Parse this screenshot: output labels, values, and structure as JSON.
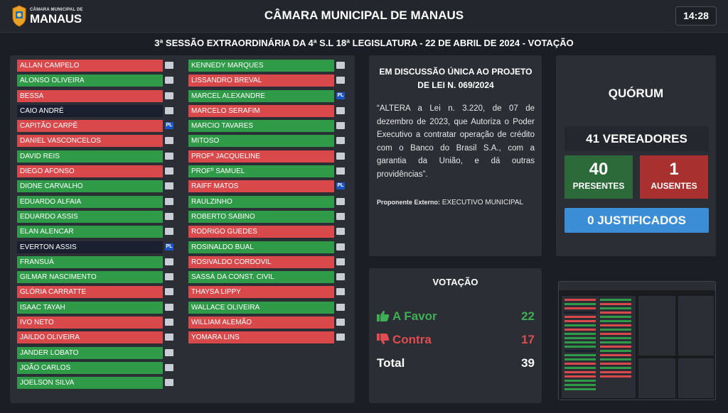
{
  "header": {
    "logo_small": "CÂMARA MUNICIPAL DE",
    "logo_big": "MANAUS",
    "title": "CÂMARA MUNICIPAL DE MANAUS",
    "time": "14:28"
  },
  "session_title": "3ª SESSÃO EXTRAORDINÁRIA DA 4ª S.L 18ª LEGISLATURA - 22 DE ABRIL DE 2024 - VOTAÇÃO",
  "members_left": [
    {
      "name": "ALLAN CAMPELO",
      "vote": "contra",
      "party": ""
    },
    {
      "name": "ALONSO OLIVEIRA",
      "vote": "favor",
      "party": ""
    },
    {
      "name": "BESSA",
      "vote": "contra",
      "party": ""
    },
    {
      "name": "CAIO ANDRÉ",
      "vote": "none",
      "party": ""
    },
    {
      "name": "CAPITÃO CARPÊ",
      "vote": "contra",
      "party": "PL"
    },
    {
      "name": "DANIEL VASCONCELOS",
      "vote": "contra",
      "party": ""
    },
    {
      "name": "DAVID REIS",
      "vote": "favor",
      "party": ""
    },
    {
      "name": "DIEGO AFONSO",
      "vote": "contra",
      "party": ""
    },
    {
      "name": "DIONE CARVALHO",
      "vote": "favor",
      "party": ""
    },
    {
      "name": "EDUARDO ALFAIA",
      "vote": "favor",
      "party": ""
    },
    {
      "name": "EDUARDO ASSIS",
      "vote": "favor",
      "party": ""
    },
    {
      "name": "ELAN ALENCAR",
      "vote": "favor",
      "party": ""
    },
    {
      "name": "EVERTON ASSIS",
      "vote": "none",
      "party": "PL"
    },
    {
      "name": "FRANSUÁ",
      "vote": "favor",
      "party": ""
    },
    {
      "name": "GILMAR NASCIMENTO",
      "vote": "favor",
      "party": ""
    },
    {
      "name": "GLÓRIA CARRATTE",
      "vote": "contra",
      "party": ""
    },
    {
      "name": "ISAAC TAYAH",
      "vote": "favor",
      "party": ""
    },
    {
      "name": "IVO NETO",
      "vote": "contra",
      "party": ""
    },
    {
      "name": "JAILDO OLIVEIRA",
      "vote": "contra",
      "party": ""
    },
    {
      "name": "JANDER LOBATO",
      "vote": "favor",
      "party": ""
    },
    {
      "name": "JOÃO CARLOS",
      "vote": "favor",
      "party": ""
    },
    {
      "name": "JOELSON SILVA",
      "vote": "favor",
      "party": ""
    }
  ],
  "members_right": [
    {
      "name": "KENNEDY MARQUES",
      "vote": "favor",
      "party": ""
    },
    {
      "name": "LISSANDRO BREVAL",
      "vote": "contra",
      "party": ""
    },
    {
      "name": "MARCEL ALEXANDRE",
      "vote": "favor",
      "party": "PL"
    },
    {
      "name": "MARCELO SERAFIM",
      "vote": "contra",
      "party": ""
    },
    {
      "name": "MARCIO TAVARES",
      "vote": "favor",
      "party": ""
    },
    {
      "name": "MITOSO",
      "vote": "favor",
      "party": ""
    },
    {
      "name": "PROFª JACQUELINE",
      "vote": "contra",
      "party": ""
    },
    {
      "name": "PROFº SAMUEL",
      "vote": "favor",
      "party": ""
    },
    {
      "name": "RAIFF MATOS",
      "vote": "contra",
      "party": "PL"
    },
    {
      "name": "RAULZINHO",
      "vote": "favor",
      "party": ""
    },
    {
      "name": "ROBERTO SABINO",
      "vote": "favor",
      "party": ""
    },
    {
      "name": "RODRIGO GUEDES",
      "vote": "contra",
      "party": ""
    },
    {
      "name": "ROSINALDO BUAL",
      "vote": "favor",
      "party": ""
    },
    {
      "name": "ROSIVALDO CORDOVIL",
      "vote": "contra",
      "party": ""
    },
    {
      "name": "SASSÁ DA CONST. CIVIL",
      "vote": "favor",
      "party": ""
    },
    {
      "name": "THAYSA LIPPY",
      "vote": "contra",
      "party": ""
    },
    {
      "name": "WALLACE OLIVEIRA",
      "vote": "favor",
      "party": ""
    },
    {
      "name": "WILLIAM ALEMÃO",
      "vote": "contra",
      "party": ""
    },
    {
      "name": "YOMARA LINS",
      "vote": "contra",
      "party": ""
    }
  ],
  "bill": {
    "title": "EM DISCUSSÃO ÚNICA AO PROJETO DE LEI N. 069/2024",
    "text": "“ALTERA a Lei n. 3.220, de 07 de dezembro de 2023, que Autoriza o Poder Executivo a contratar operação de crédito com o Banco do Brasil S.A., com a garantia da União, e dá outras providências”.",
    "proponent_label": "Proponente Externo:",
    "proponent_value": "EXECUTIVO MUNICIPAL"
  },
  "vote": {
    "title": "VOTAÇÃO",
    "favor_label": "A Favor",
    "favor_count": "22",
    "contra_label": "Contra",
    "contra_count": "17",
    "total_label": "Total",
    "total_count": "39"
  },
  "quorum": {
    "title": "QUÓRUM",
    "members": "41 VEREADORES",
    "present_count": "40",
    "present_label": "PRESENTES",
    "absent_count": "1",
    "absent_label": "AUSENTES",
    "justified": "0 JUSTIFICADOS"
  },
  "colors": {
    "favor": "#2f9a48",
    "contra": "#d9484b",
    "none": "#1a2030",
    "party_pl": "#1a56c8",
    "justified": "#3b8ed6"
  },
  "icons": {
    "favor": "thumbs-up-icon",
    "contra": "thumbs-down-icon",
    "logo": "city-seal-icon"
  }
}
